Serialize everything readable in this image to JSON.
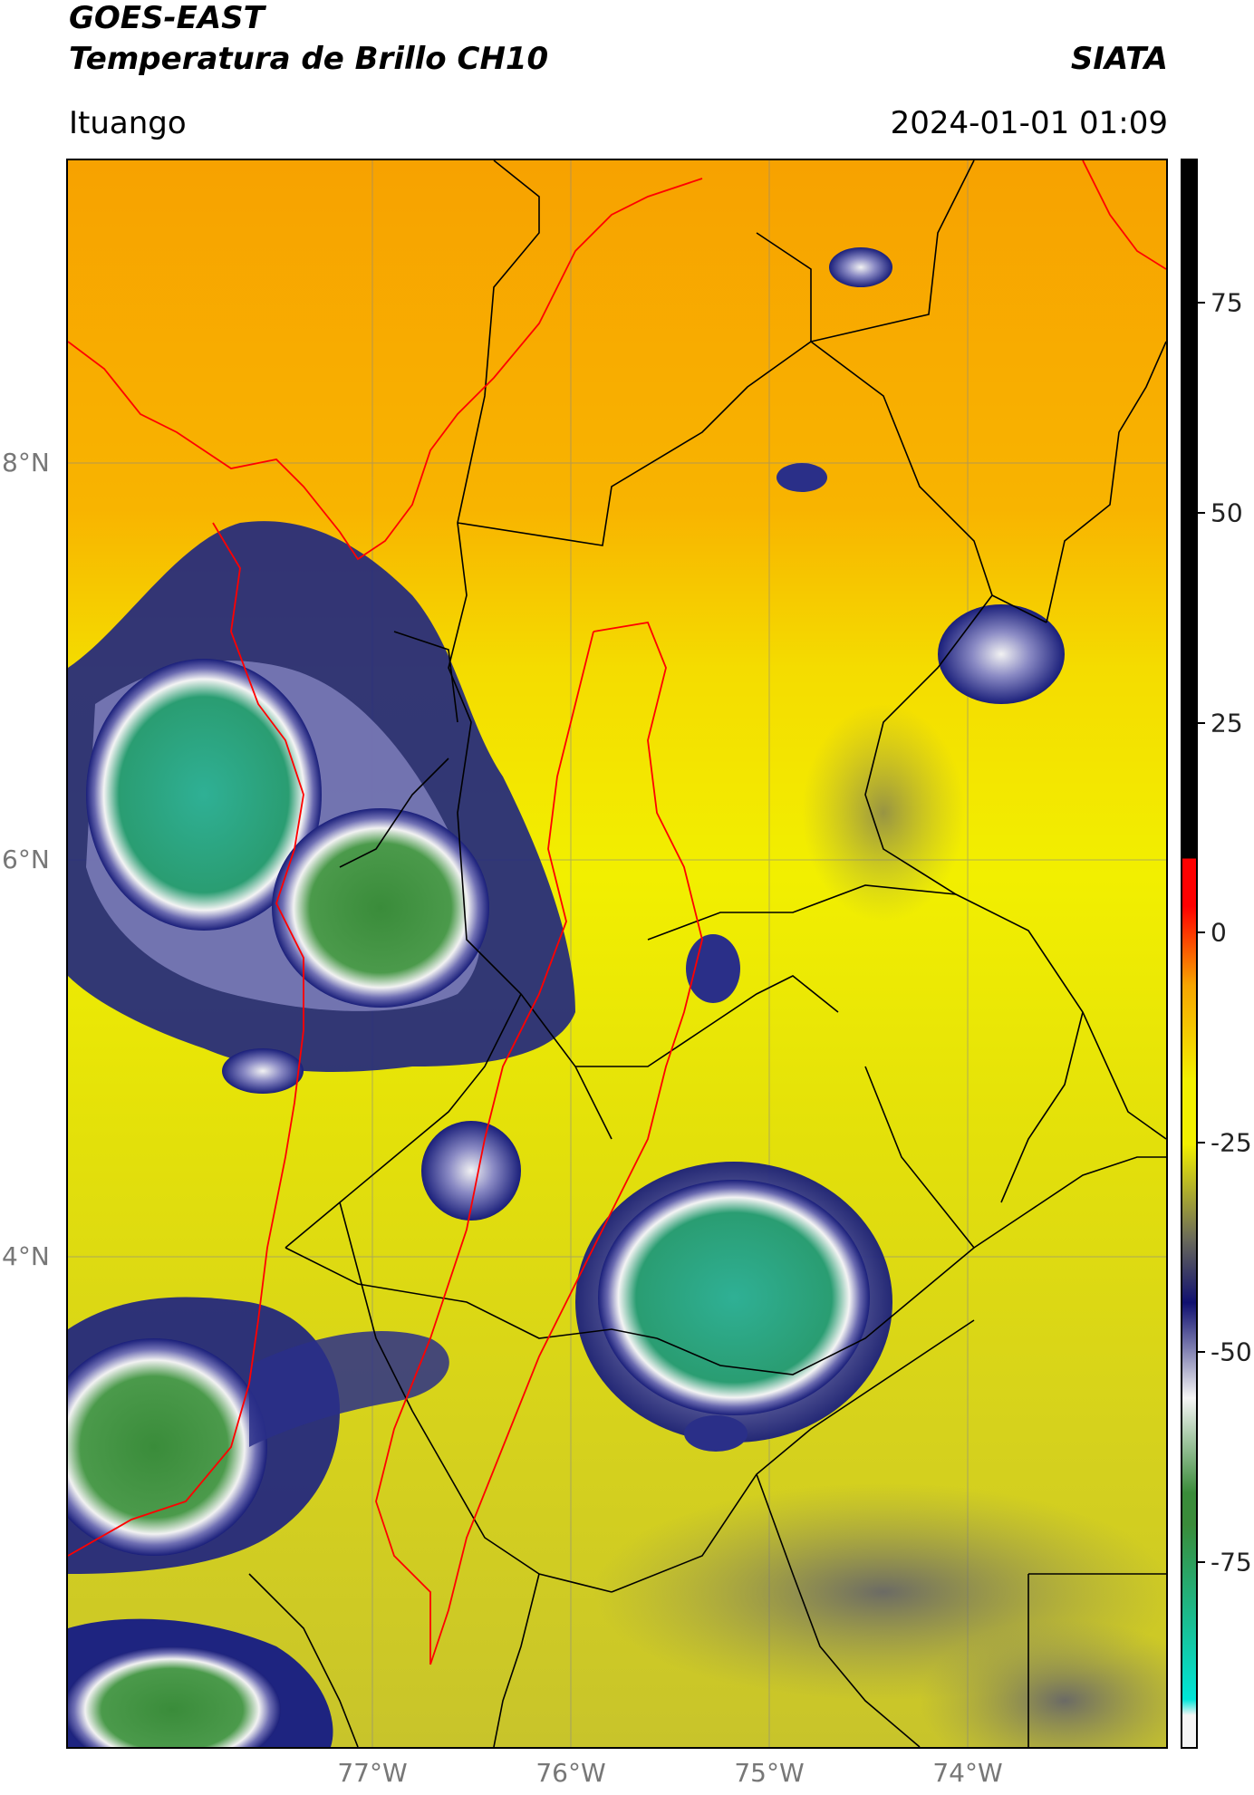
{
  "header": {
    "satellite": "GOES-EAST",
    "product": "Temperatura de Brillo CH10",
    "org": "SIATA",
    "location": "Ituango",
    "datetime": "2024-01-01 01:09"
  },
  "map": {
    "lat_ticks": [
      "8°N",
      "6°N",
      "4°N"
    ],
    "lon_ticks": [
      "77°W",
      "76°W",
      "75°W",
      "74°W"
    ],
    "palette": {
      "orange": "#f7a500",
      "yellow": "#f2f000",
      "olive": "#c9c431",
      "navy": "#1a1f7a",
      "white": "#f0f0f0",
      "teal": "#2aa87c",
      "green": "#3c8c3c",
      "border_black": "#000000",
      "border_red": "#ff0000"
    }
  },
  "colorbar": {
    "labels": [
      "75",
      "50",
      "25",
      "0",
      "-25",
      "-50",
      "-75"
    ],
    "colors": {
      "black": "#000000",
      "red": "#ff0000",
      "orange": "#f7a500",
      "yellow": "#f2f000",
      "grey": "#6a6a5a",
      "navy": "#101070",
      "white": "#f5f5f5",
      "green": "#3a8c3a",
      "cyan": "#00e5d8"
    }
  }
}
